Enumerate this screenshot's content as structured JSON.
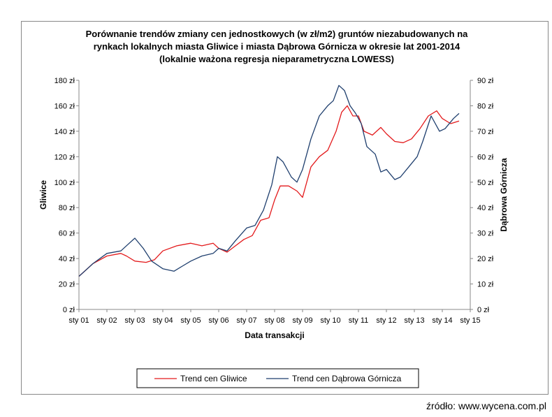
{
  "chart_data": {
    "type": "line",
    "title": [
      "Porównanie trendów zmiany cen jednostkowych (w zł/m2) gruntów niezabudowanych na",
      "rynkach lokalnych miasta Gliwice i miasta Dąbrowa  Górnicza w okresie lat 2001-2014",
      "(lokalnie ważona regresja nieparametryczna LOWESS)"
    ],
    "xlabel": "Data transakcji",
    "ylabel_left": "Gliwice",
    "ylabel_right": "Dąbrowa Górnicza",
    "x_ticks": [
      "sty 01",
      "sty 02",
      "sty 03",
      "sty 04",
      "sty 05",
      "sty 06",
      "sty 07",
      "sty 08",
      "sty 09",
      "sty 10",
      "sty 11",
      "sty 12",
      "sty 13",
      "sty 14",
      "sty 15"
    ],
    "xlim": [
      2001,
      2015
    ],
    "y_left": {
      "lim": [
        0,
        180
      ],
      "ticks": [
        "0 zł",
        "20 zł",
        "40 zł",
        "60 zł",
        "80 zł",
        "100 zł",
        "120 zł",
        "140 zł",
        "160 zł",
        "180 zł"
      ]
    },
    "y_right": {
      "lim": [
        0,
        90
      ],
      "ticks": [
        "0 zł",
        "10 zł",
        "20 zł",
        "30 zł",
        "40 zł",
        "50 zł",
        "60 zł",
        "70 zł",
        "80 zł",
        "90 zł"
      ]
    },
    "series": [
      {
        "name": "Trend cen Gliwice",
        "axis": "left",
        "color": "#e31a1c",
        "x": [
          2001.0,
          2001.5,
          2002.0,
          2002.5,
          2002.7,
          2003.0,
          2003.4,
          2003.7,
          2004.0,
          2004.5,
          2005.0,
          2005.4,
          2005.8,
          2006.0,
          2006.3,
          2006.6,
          2006.9,
          2007.2,
          2007.5,
          2007.8,
          2008.0,
          2008.2,
          2008.5,
          2008.8,
          2009.0,
          2009.3,
          2009.6,
          2009.9,
          2010.2,
          2010.4,
          2010.6,
          2010.8,
          2011.0,
          2011.2,
          2011.5,
          2011.8,
          2012.0,
          2012.3,
          2012.6,
          2012.9,
          2013.2,
          2013.5,
          2013.8,
          2014.0,
          2014.3,
          2014.6
        ],
        "y": [
          26,
          36,
          42,
          44,
          42,
          38,
          37,
          39,
          46,
          50,
          52,
          50,
          52,
          48,
          45,
          50,
          55,
          58,
          70,
          72,
          86,
          97,
          97,
          93,
          88,
          112,
          120,
          125,
          140,
          155,
          160,
          152,
          152,
          140,
          137,
          143,
          138,
          132,
          131,
          134,
          142,
          152,
          156,
          150,
          146,
          148
        ]
      },
      {
        "name": "Trend cen Dąbrowa Górnicza",
        "axis": "right",
        "color": "#1f3f6e",
        "x": [
          2001.0,
          2001.5,
          2002.0,
          2002.5,
          2002.8,
          2003.0,
          2003.3,
          2003.6,
          2004.0,
          2004.4,
          2004.7,
          2005.0,
          2005.4,
          2005.8,
          2006.0,
          2006.3,
          2006.6,
          2007.0,
          2007.3,
          2007.6,
          2007.9,
          2008.1,
          2008.3,
          2008.6,
          2008.8,
          2009.0,
          2009.3,
          2009.6,
          2009.9,
          2010.1,
          2010.3,
          2010.5,
          2010.7,
          2010.9,
          2011.1,
          2011.3,
          2011.6,
          2011.8,
          2012.0,
          2012.3,
          2012.5,
          2012.8,
          2013.1,
          2013.3,
          2013.6,
          2013.9,
          2014.1,
          2014.4,
          2014.6
        ],
        "y": [
          13,
          18,
          22,
          23,
          26,
          28,
          24,
          19,
          16,
          15,
          17,
          19,
          21,
          22,
          24,
          23,
          27,
          32,
          33,
          39,
          49,
          60,
          58,
          52,
          50,
          55,
          67,
          76,
          80,
          82,
          88,
          86,
          80,
          77,
          73,
          64,
          61,
          54,
          55,
          51,
          52,
          56,
          60,
          66,
          76,
          70,
          71,
          75,
          77
        ]
      }
    ],
    "legend_position": "bottom"
  },
  "footer": {
    "source": "źródło: www.wycena.com.pl"
  }
}
